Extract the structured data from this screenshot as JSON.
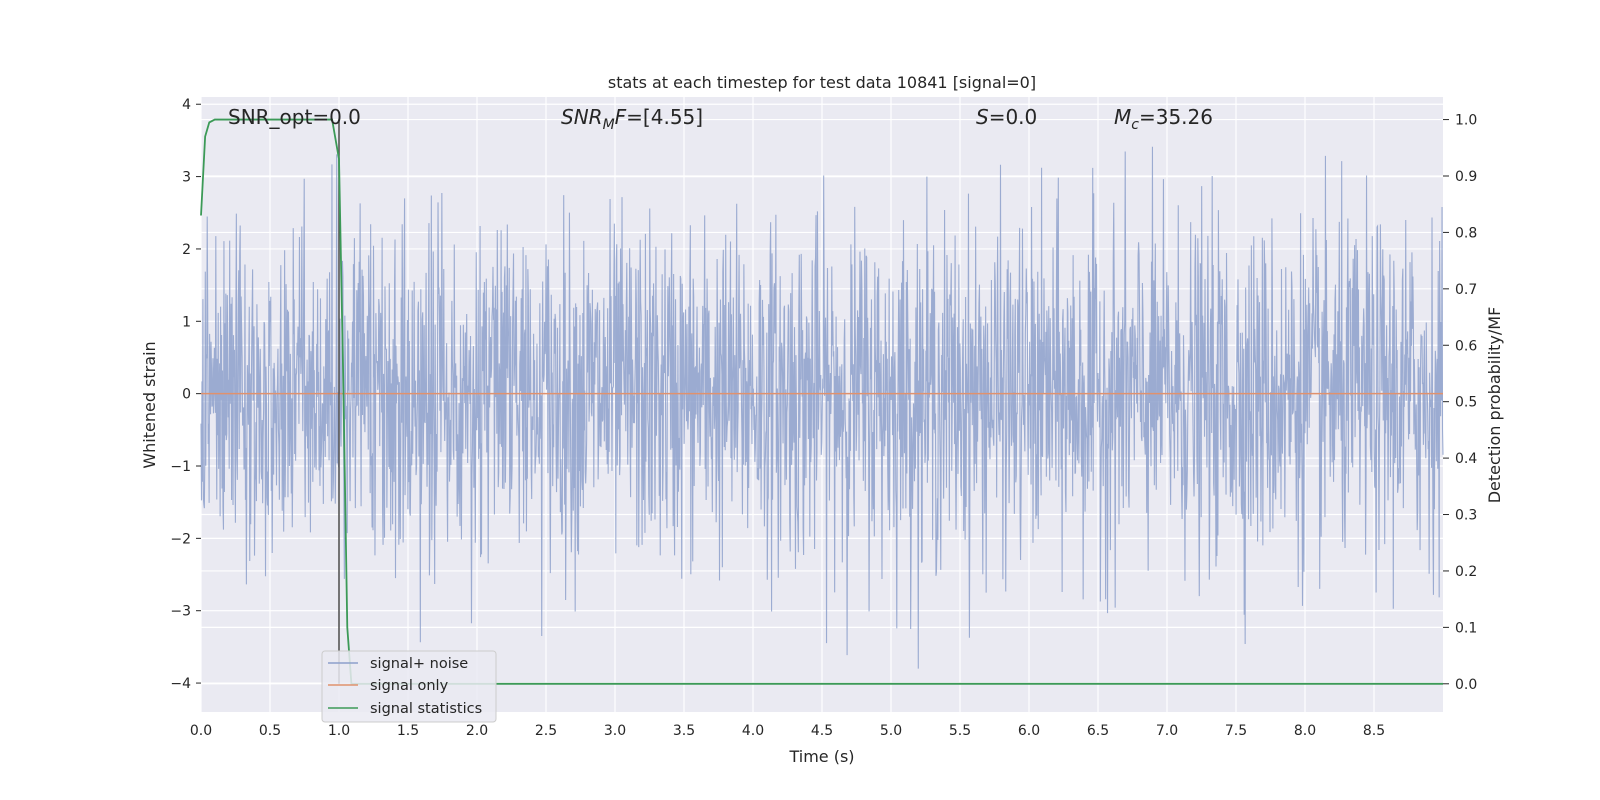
{
  "chart_data": {
    "type": "line",
    "title": "stats at each timestep for test data 10841 [signal=0]",
    "xlabel": "Time (s)",
    "ylabel": "Whitened strain",
    "ylabel_right": "Detection probability/MF",
    "xlim": [
      0,
      9
    ],
    "ylim": [
      -4.4,
      4.1
    ],
    "ylim_right": [
      -0.05,
      1.04
    ],
    "x_ticks": [
      "0.0",
      "0.5",
      "1.0",
      "1.5",
      "2.0",
      "2.5",
      "3.0",
      "3.5",
      "4.0",
      "4.5",
      "5.0",
      "5.5",
      "6.0",
      "6.5",
      "7.0",
      "7.5",
      "8.0",
      "8.5"
    ],
    "y_ticks": [
      "4",
      "3",
      "2",
      "1",
      "0",
      "−1",
      "−2",
      "−3",
      "−4"
    ],
    "y_ticks_right": [
      "1.0",
      "0.9",
      "0.8",
      "0.7",
      "0.6",
      "0.5",
      "0.4",
      "0.3",
      "0.2",
      "0.1",
      "0.0"
    ],
    "grid": true,
    "legend_position": "lower-left",
    "annotations": {
      "snr_opt": "SNR_opt=0.0",
      "snr_mf_main": "SNR",
      "snr_mf_sub": "M",
      "snr_mf_var": "F",
      "snr_mf_value": "=[4.55]",
      "s_var": "S",
      "s_value": "=0.0",
      "mc_var": "M",
      "mc_sub": "c",
      "mc_value": "=35.26"
    },
    "series": [
      {
        "name": "signal+ noise",
        "axis": "left",
        "color": "#8da0cb",
        "description": "dense whitened noise, roughly within ±2.5 with spikes to about ±3.8",
        "amplitude_envelope": {
          "typical": 1.5,
          "max": 3.8
        }
      },
      {
        "name": "signal only",
        "axis": "left",
        "color": "#e0916d",
        "x": [
          0,
          9
        ],
        "y": [
          0,
          0
        ]
      },
      {
        "name": "signal statistics",
        "axis": "right",
        "color": "#3c9a57",
        "x": [
          0.0,
          0.03,
          0.06,
          0.1,
          0.2,
          0.4,
          0.6,
          0.8,
          0.95,
          1.0,
          1.03,
          1.06,
          1.09,
          1.2,
          2.0,
          3.0,
          4.0,
          5.0,
          6.0,
          7.0,
          8.0,
          9.0
        ],
        "y": [
          0.83,
          0.97,
          0.995,
          1.0,
          1.0,
          1.0,
          1.0,
          1.0,
          1.0,
          0.93,
          0.55,
          0.1,
          0.0,
          0.0,
          0.0,
          0.0,
          0.0,
          0.0,
          0.0,
          0.0,
          0.0,
          0.0
        ]
      }
    ],
    "vertical_line": {
      "x": 1.0,
      "color": "#555555"
    }
  }
}
